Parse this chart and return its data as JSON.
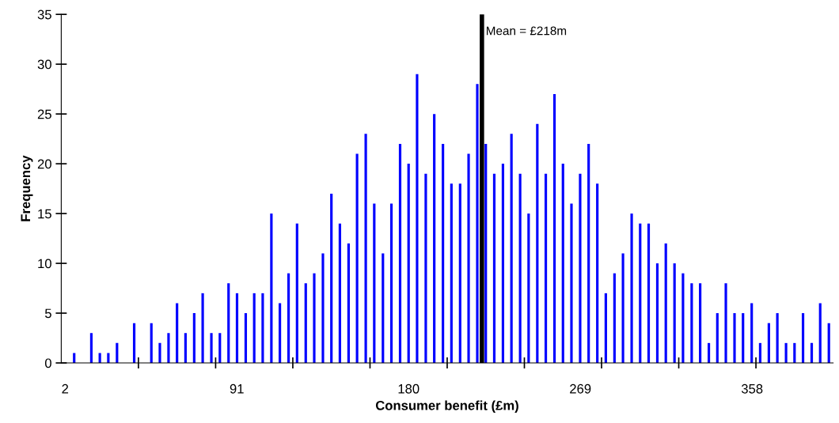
{
  "chart_data": {
    "type": "bar",
    "xlabel": "Consumer benefit (£m)",
    "ylabel": "Frequency",
    "x": [
      2.2,
      6.7,
      11.1,
      15.6,
      20.0,
      24.4,
      28.9,
      33.3,
      37.8,
      42.2,
      46.7,
      51.1,
      55.6,
      60.0,
      64.4,
      68.9,
      73.3,
      77.8,
      82.2,
      86.7,
      91.1,
      95.6,
      100.0,
      104.4,
      108.9,
      113.3,
      117.8,
      122.2,
      126.7,
      131.1,
      135.6,
      140.0,
      144.4,
      148.9,
      153.3,
      157.8,
      162.2,
      166.7,
      171.1,
      175.6,
      180.0,
      184.4,
      188.9,
      193.3,
      197.8,
      202.2,
      206.7,
      211.1,
      215.6,
      220.0,
      224.4,
      228.9,
      233.3,
      237.8,
      242.2,
      246.7,
      251.1,
      255.6,
      260.0,
      264.4,
      268.9,
      273.3,
      277.8,
      282.2,
      286.7,
      291.1,
      295.6,
      300.0,
      304.4,
      308.9,
      313.3,
      317.8,
      322.2,
      326.7,
      331.1,
      335.6,
      340.0,
      344.4,
      348.9,
      353.3,
      357.8,
      362.2,
      366.7,
      371.1,
      375.6,
      380.0,
      384.4,
      388.9,
      393.3,
      397.8
    ],
    "values": [
      0,
      1,
      0,
      3,
      1,
      1,
      2,
      0,
      4,
      0,
      4,
      2,
      3,
      6,
      3,
      5,
      7,
      3,
      3,
      8,
      7,
      5,
      7,
      7,
      15,
      6,
      9,
      14,
      8,
      9,
      11,
      17,
      14,
      12,
      21,
      23,
      16,
      11,
      16,
      22,
      20,
      29,
      19,
      25,
      22,
      18,
      18,
      21,
      28,
      22,
      19,
      20,
      23,
      19,
      15,
      24,
      19,
      27,
      20,
      16,
      19,
      22,
      18,
      7,
      9,
      11,
      15,
      14,
      14,
      10,
      12,
      10,
      9,
      8,
      8,
      2,
      5,
      8,
      5,
      5,
      6,
      2,
      4,
      5,
      2,
      2,
      5,
      2,
      6,
      4
    ],
    "color": "#0000ff",
    "xlim": [
      0,
      400
    ],
    "xticks": [
      2,
      {
        "value": 40,
        "label": null
      },
      {
        "value": 80,
        "label": null
      },
      91,
      {
        "value": 120,
        "label": null
      },
      {
        "value": 160,
        "label": null
      },
      180,
      {
        "value": 200,
        "label": null
      },
      {
        "value": 240,
        "label": null
      },
      269,
      {
        "value": 280,
        "label": null
      },
      {
        "value": 320,
        "label": null
      },
      358,
      {
        "value": 360,
        "label": null
      }
    ],
    "ylim": [
      0,
      35
    ],
    "yticks": [
      0,
      5,
      10,
      15,
      20,
      25,
      30,
      35
    ],
    "ref_lines": [
      {
        "axis": "x",
        "value": 218,
        "label": "Mean = £218m",
        "color": "#000000"
      }
    ],
    "grid": false,
    "legend": false
  }
}
